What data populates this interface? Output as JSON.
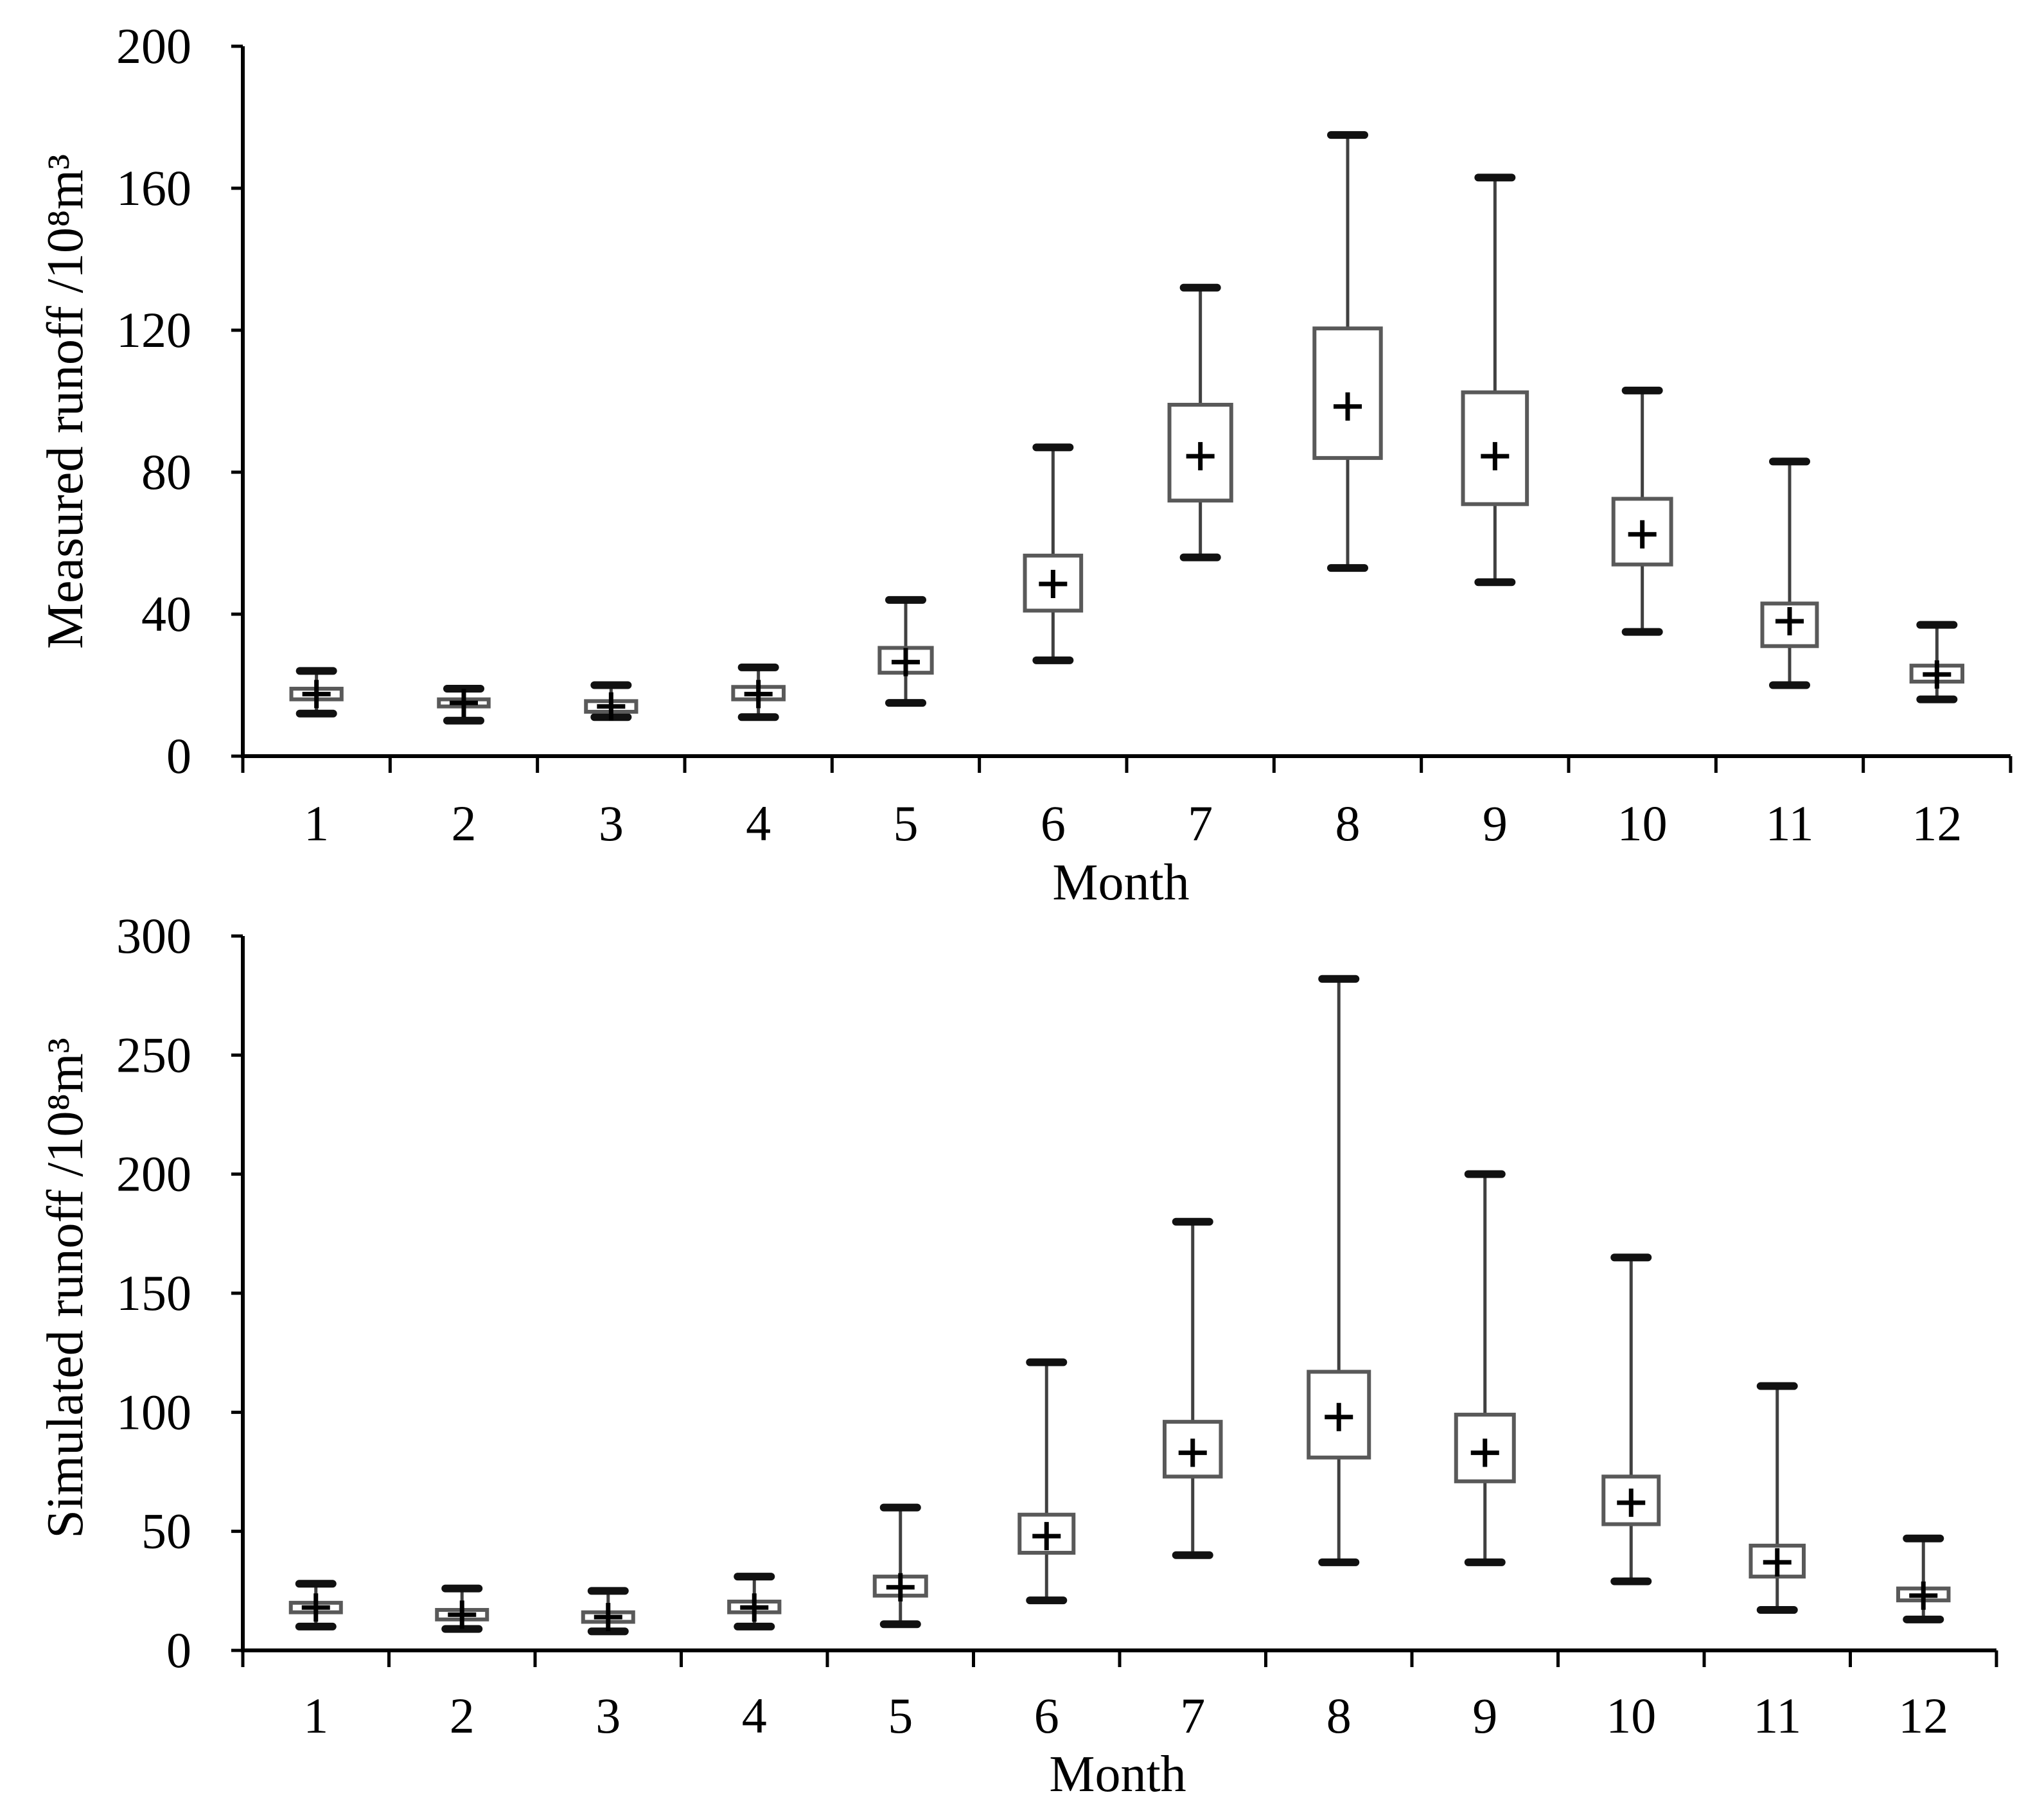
{
  "chart_data": [
    {
      "type": "boxplot",
      "xlabel": "Month",
      "ylabel": "Measured runoff /10⁸m³",
      "ylim": [
        0,
        200
      ],
      "yticks": [
        0,
        40,
        80,
        120,
        160,
        200
      ],
      "categories": [
        "1",
        "2",
        "3",
        "4",
        "5",
        "6",
        "7",
        "8",
        "9",
        "10",
        "11",
        "12"
      ],
      "min": [
        12,
        10,
        11,
        11,
        15,
        27,
        56,
        53,
        49,
        35,
        20,
        16
      ],
      "q1": [
        16,
        14,
        12.5,
        16,
        23.5,
        41,
        72,
        84,
        71,
        54,
        31,
        21
      ],
      "q3": [
        19,
        16,
        15.5,
        19.5,
        30.5,
        56.5,
        99,
        120.5,
        102.5,
        72.5,
        43,
        25.5
      ],
      "max": [
        24,
        19,
        20,
        25,
        44,
        87,
        132,
        175,
        163,
        103,
        83,
        37
      ],
      "mean": [
        17.5,
        15,
        14,
        17.5,
        26.5,
        48.5,
        84.5,
        98.5,
        84.5,
        62.5,
        38,
        23
      ]
    },
    {
      "type": "boxplot",
      "xlabel": "Month",
      "ylabel": "Simulated runoff /10⁸m³",
      "ylim": [
        0,
        300
      ],
      "yticks": [
        0,
        50,
        100,
        150,
        200,
        250,
        300
      ],
      "categories": [
        "1",
        "2",
        "3",
        "4",
        "5",
        "6",
        "7",
        "8",
        "9",
        "10",
        "11",
        "12"
      ],
      "min": [
        10,
        9,
        8,
        10,
        11,
        21,
        40,
        37,
        37,
        29,
        17,
        13
      ],
      "q1": [
        16,
        13,
        12,
        16,
        23,
        41,
        73,
        81,
        71,
        53,
        31,
        21
      ],
      "q3": [
        20,
        17,
        16,
        20.5,
        31,
        57,
        96,
        117,
        99,
        73,
        44,
        26
      ],
      "max": [
        28,
        26,
        25,
        31,
        60,
        121,
        180,
        282,
        200,
        165,
        111,
        47
      ],
      "mean": [
        18,
        15,
        14,
        18,
        26.5,
        48,
        83,
        98,
        83,
        62,
        37,
        23
      ]
    }
  ]
}
